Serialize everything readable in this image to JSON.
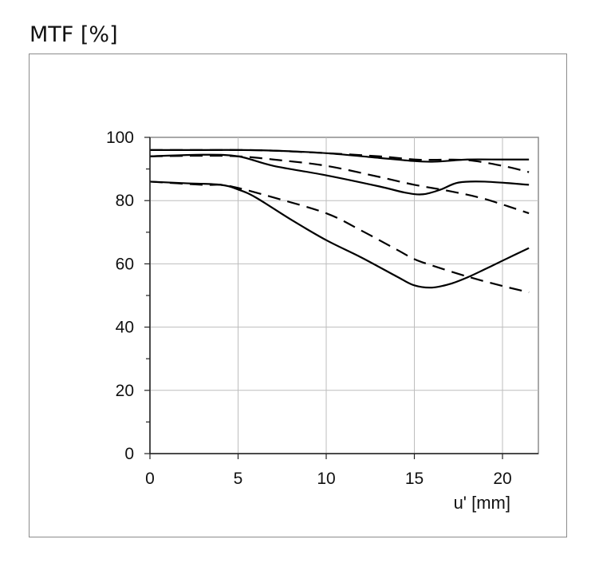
{
  "chart_title": "MTF [%]",
  "chart_data": {
    "type": "line",
    "title": "MTF [%]",
    "xlabel": "u' [mm]",
    "ylabel": "MTF [%]",
    "xlim": [
      0,
      22
    ],
    "ylim": [
      0,
      100
    ],
    "x_ticks": [
      0,
      5,
      10,
      15,
      20
    ],
    "y_ticks": [
      0,
      20,
      40,
      60,
      80,
      100
    ],
    "grid": true,
    "legend": "none",
    "series": [
      {
        "style": "solid",
        "x": [
          0,
          3,
          5,
          7,
          10,
          13,
          15,
          16,
          17,
          18,
          20,
          21.5
        ],
        "values": [
          96,
          96,
          96,
          95.8,
          95,
          93.5,
          92.5,
          92.3,
          92.6,
          93,
          93,
          93
        ]
      },
      {
        "style": "dashed",
        "x": [
          0,
          3,
          5,
          7,
          10,
          13,
          15,
          16,
          18,
          20,
          21.5
        ],
        "values": [
          96,
          96,
          96,
          95.8,
          95,
          94,
          93,
          92.9,
          92.8,
          91,
          89
        ]
      },
      {
        "style": "solid",
        "x": [
          0,
          3,
          5,
          7,
          10,
          13,
          14.5,
          15.5,
          16.5,
          17.5,
          19,
          21.5
        ],
        "values": [
          94,
          94.5,
          94,
          91,
          88,
          84.5,
          82.5,
          82,
          83.5,
          85.7,
          86,
          85
        ]
      },
      {
        "style": "dashed",
        "x": [
          0,
          3,
          5,
          7,
          10,
          13,
          15,
          17,
          19,
          21.5
        ],
        "values": [
          94,
          94.2,
          94,
          93,
          91,
          87.5,
          85,
          83,
          80.5,
          76
        ]
      },
      {
        "style": "solid",
        "x": [
          0,
          2,
          4,
          5,
          6,
          8,
          10,
          12,
          14,
          15,
          16,
          17,
          18,
          19,
          20,
          21.5
        ],
        "values": [
          86,
          85.5,
          85,
          83.5,
          81,
          74,
          67.5,
          62,
          56,
          53.2,
          52.5,
          53.6,
          55.7,
          58.3,
          61,
          65
        ]
      },
      {
        "style": "dashed",
        "x": [
          0,
          3,
          4,
          5,
          7,
          10,
          12,
          14,
          15,
          16,
          18,
          20,
          21.5
        ],
        "values": [
          86,
          85,
          85,
          84,
          81,
          76,
          70.5,
          64.5,
          61.5,
          59.5,
          56,
          53,
          51
        ]
      }
    ]
  }
}
